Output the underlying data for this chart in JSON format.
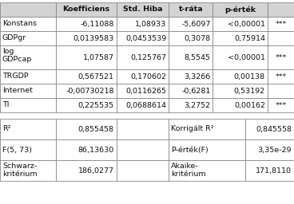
{
  "header": [
    "",
    "Koefficiens",
    "Std. Hiba",
    "t-ráta",
    "p-érték",
    ""
  ],
  "rows": [
    [
      "Konstans",
      "-6,11088",
      "1,08933",
      "-5,6097",
      "<0,00001",
      "***"
    ],
    [
      "GDPgr",
      "0,0139583",
      "0,0453539",
      "0,3078",
      "0,75914",
      ""
    ],
    [
      "log\nGDPcap",
      "1,07587",
      "0,125767",
      "8,5545",
      "<0,00001",
      "***"
    ],
    [
      "TRGDP",
      "0,567521",
      "0,170602",
      "3,3266",
      "0,00138",
      "***"
    ],
    [
      "Internet",
      "-0,00730218",
      "0,0116265",
      "-0,6281",
      "0,53192",
      ""
    ],
    [
      "TI",
      "0,225535",
      "0,0688614",
      "3,2752",
      "0,00162",
      "***"
    ]
  ],
  "stats": [
    [
      "R²",
      "0,855458",
      "",
      "Korrigált R²",
      "0,845558"
    ],
    [
      "F(5, 73)",
      "86,13630",
      "",
      "P-érték(F)",
      "3,35e-29"
    ],
    [
      "Schwarz-\nkritérium",
      "186,0277",
      "",
      "Akaike-\nkritérium",
      "171,8110"
    ]
  ],
  "header_bg": "#d3d3d3",
  "border_color": "#888888",
  "text_color": "#111111",
  "font_size": 6.8
}
